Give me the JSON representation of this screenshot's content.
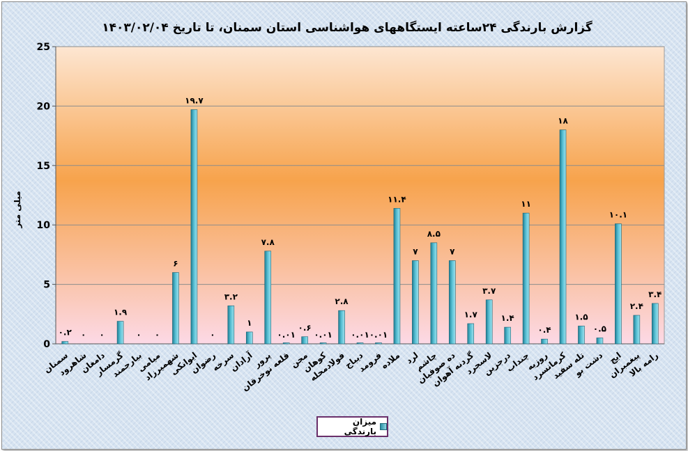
{
  "chart_data": {
    "type": "bar",
    "title": "گزارش بارندگی ۲۴ساعته ایستگاههای هواشناسی استان سمنان، تا تاریخ  ۱۴۰۳/۰۲/۰۴",
    "ylabel": "میلی متر",
    "xlabel": "",
    "ylim": [
      0,
      25
    ],
    "yticks": [
      0,
      5,
      10,
      15,
      20,
      25
    ],
    "grid": true,
    "legend_position": "bottom",
    "categories": [
      "سمنان",
      "شاهرود",
      "دامغان",
      "گرمسار",
      "بیارجمند",
      "میامی",
      "شهمیرزاد",
      "ایوانکی",
      "رضوان",
      "سرخه",
      "آرادان",
      "پرور",
      "قلعه نوخرقان",
      "مجن",
      "کوهان",
      "فولادمحله",
      "دیباج",
      "فرومد",
      "ملاده",
      "لرد",
      "چاشم",
      "ده صوفیان",
      "گردنه آهوان",
      "لاسجرد",
      "درجزین",
      "چنداب",
      "روزیه",
      "کرمانسرد",
      "تله سفید",
      "دشت بو",
      "ایج",
      "پیغمبران",
      "رامه بالا"
    ],
    "values": [
      0.2,
      0,
      0,
      1.9,
      0,
      0,
      6,
      19.7,
      0,
      3.2,
      1,
      7.8,
      0.01,
      0.6,
      0.01,
      2.8,
      0.01,
      0.01,
      11.4,
      7,
      8.5,
      7,
      1.7,
      3.7,
      1.4,
      11,
      0.4,
      18,
      1.5,
      0.5,
      10.1,
      2.4,
      3.4
    ],
    "data_labels": [
      "۰.۲",
      "۰",
      "۰",
      "۱.۹",
      "۰",
      "۰",
      "۶",
      "۱۹.۷",
      "۰",
      "۳.۲",
      "۱",
      "۷.۸",
      "۰.۰۱",
      "۰.۶",
      "۰.۰۱",
      "۲.۸",
      "۰.۰۱",
      "۰.۰۱",
      "۱۱.۴",
      "۷",
      "۸.۵",
      "۷",
      "۱.۷",
      "۳.۷",
      "۱.۴",
      "۱۱",
      "۰.۴",
      "۱۸",
      "۱.۵",
      "۰.۵",
      "۱۰.۱",
      "۲.۴",
      "۳.۴"
    ],
    "series": [
      {
        "name": "میزان بارندگی",
        "color": "#2e9ab0"
      }
    ],
    "background_gradient": [
      "#fde3cb",
      "#f7a24a",
      "#fbd7e2"
    ]
  }
}
